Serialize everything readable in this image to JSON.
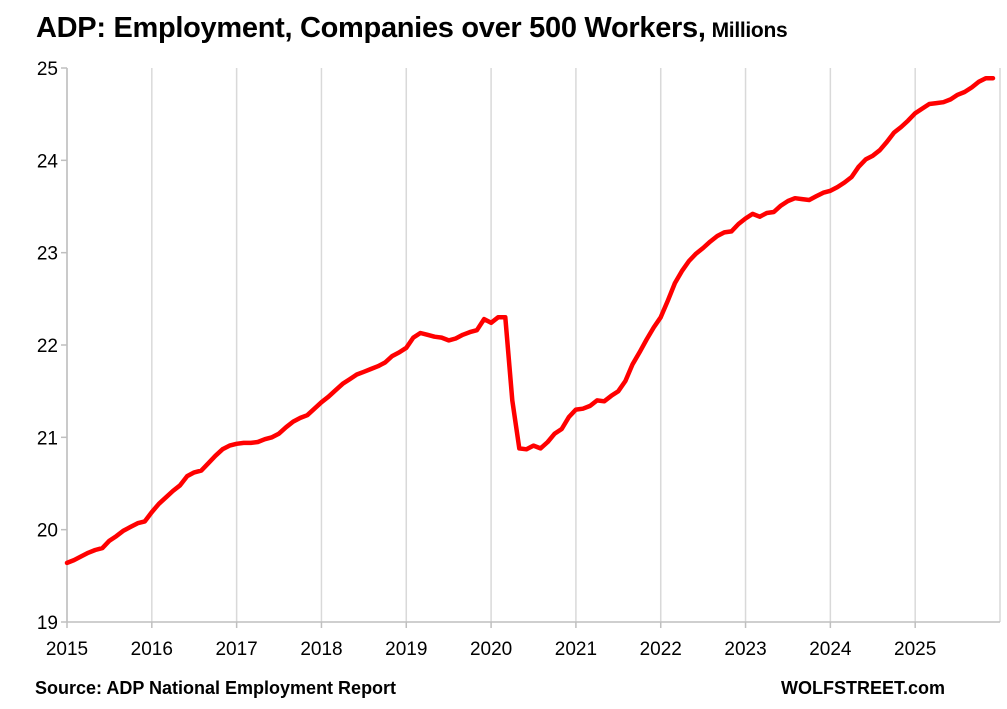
{
  "chart_data": {
    "type": "line",
    "title": "ADP: Employment, Companies over 500 Workers,",
    "subtitle": "Millions",
    "xlabel": "",
    "ylabel": "",
    "xlim": [
      2015.0,
      2026.0
    ],
    "ylim": [
      19,
      25
    ],
    "x_ticks": [
      "2015",
      "2016",
      "2017",
      "2018",
      "2019",
      "2020",
      "2021",
      "2022",
      "2023",
      "2024",
      "2025"
    ],
    "y_ticks": [
      "19",
      "20",
      "21",
      "22",
      "23",
      "24",
      "25"
    ],
    "grid": "vertical",
    "legend": "none",
    "line_color": "#ff0000",
    "series": [
      {
        "x": [
          2015.0,
          2015.083,
          2015.167,
          2015.25,
          2015.333,
          2015.417,
          2015.5,
          2015.583,
          2015.667,
          2015.75,
          2015.833,
          2015.917,
          2016.0,
          2016.083,
          2016.167,
          2016.25,
          2016.333,
          2016.417,
          2016.5,
          2016.583,
          2016.667,
          2016.75,
          2016.833,
          2016.917,
          2017.0,
          2017.083,
          2017.167,
          2017.25,
          2017.333,
          2017.417,
          2017.5,
          2017.583,
          2017.667,
          2017.75,
          2017.833,
          2017.917,
          2018.0,
          2018.083,
          2018.167,
          2018.25,
          2018.333,
          2018.417,
          2018.5,
          2018.583,
          2018.667,
          2018.75,
          2018.833,
          2018.917,
          2019.0,
          2019.083,
          2019.167,
          2019.25,
          2019.333,
          2019.417,
          2019.5,
          2019.583,
          2019.667,
          2019.75,
          2019.833,
          2019.917,
          2020.0,
          2020.083,
          2020.167,
          2020.25,
          2020.333,
          2020.417,
          2020.5,
          2020.583,
          2020.667,
          2020.75,
          2020.833,
          2020.917,
          2021.0,
          2021.083,
          2021.167,
          2021.25,
          2021.333,
          2021.417,
          2021.5,
          2021.583,
          2021.667,
          2021.75,
          2021.833,
          2021.917,
          2022.0,
          2022.083,
          2022.167,
          2022.25,
          2022.333,
          2022.417,
          2022.5,
          2022.583,
          2022.667,
          2022.75,
          2022.833,
          2022.917,
          2023.0,
          2023.083,
          2023.167,
          2023.25,
          2023.333,
          2023.417,
          2023.5,
          2023.583,
          2023.667,
          2023.75,
          2023.833,
          2023.917,
          2024.0,
          2024.083,
          2024.167,
          2024.25,
          2024.333,
          2024.417,
          2024.5,
          2024.583,
          2024.667,
          2024.75,
          2024.833,
          2024.917,
          2025.0,
          2025.083,
          2025.167,
          2025.25,
          2025.333,
          2025.417,
          2025.5,
          2025.583,
          2025.667,
          2025.75,
          2025.833,
          2025.917
        ],
        "y": [
          19.64,
          19.67,
          19.71,
          19.75,
          19.78,
          19.8,
          19.88,
          19.93,
          19.99,
          20.03,
          20.07,
          20.09,
          20.19,
          20.28,
          20.35,
          20.42,
          20.48,
          20.58,
          20.62,
          20.64,
          20.72,
          20.8,
          20.87,
          20.91,
          20.93,
          20.94,
          20.94,
          20.95,
          20.98,
          21.0,
          21.04,
          21.11,
          21.17,
          21.21,
          21.24,
          21.31,
          21.38,
          21.44,
          21.51,
          21.58,
          21.63,
          21.68,
          21.71,
          21.74,
          21.77,
          21.81,
          21.88,
          21.92,
          21.97,
          22.08,
          22.13,
          22.11,
          22.09,
          22.08,
          22.05,
          22.07,
          22.11,
          22.14,
          22.16,
          22.28,
          22.24,
          22.3,
          22.3,
          21.4,
          20.88,
          20.87,
          20.91,
          20.88,
          20.95,
          21.04,
          21.09,
          21.22,
          21.3,
          21.31,
          21.34,
          21.4,
          21.39,
          21.45,
          21.5,
          21.61,
          21.79,
          21.92,
          22.06,
          22.19,
          22.3,
          22.48,
          22.67,
          22.8,
          22.91,
          22.99,
          23.05,
          23.12,
          23.18,
          23.22,
          23.23,
          23.31,
          23.37,
          23.42,
          23.39,
          23.43,
          23.44,
          23.51,
          23.56,
          23.59,
          23.58,
          23.57,
          23.61,
          23.65,
          23.67,
          23.71,
          23.76,
          23.82,
          23.93,
          24.01,
          24.05,
          24.11,
          24.2,
          24.3,
          24.36,
          24.43,
          24.51,
          24.56,
          24.61,
          24.62,
          24.63,
          24.66,
          24.71,
          24.74,
          24.79,
          24.85,
          24.89,
          24.89
        ]
      }
    ]
  },
  "footer": {
    "source": "Source: ADP National Employment Report",
    "credit": "WOLFSTREET.com"
  }
}
